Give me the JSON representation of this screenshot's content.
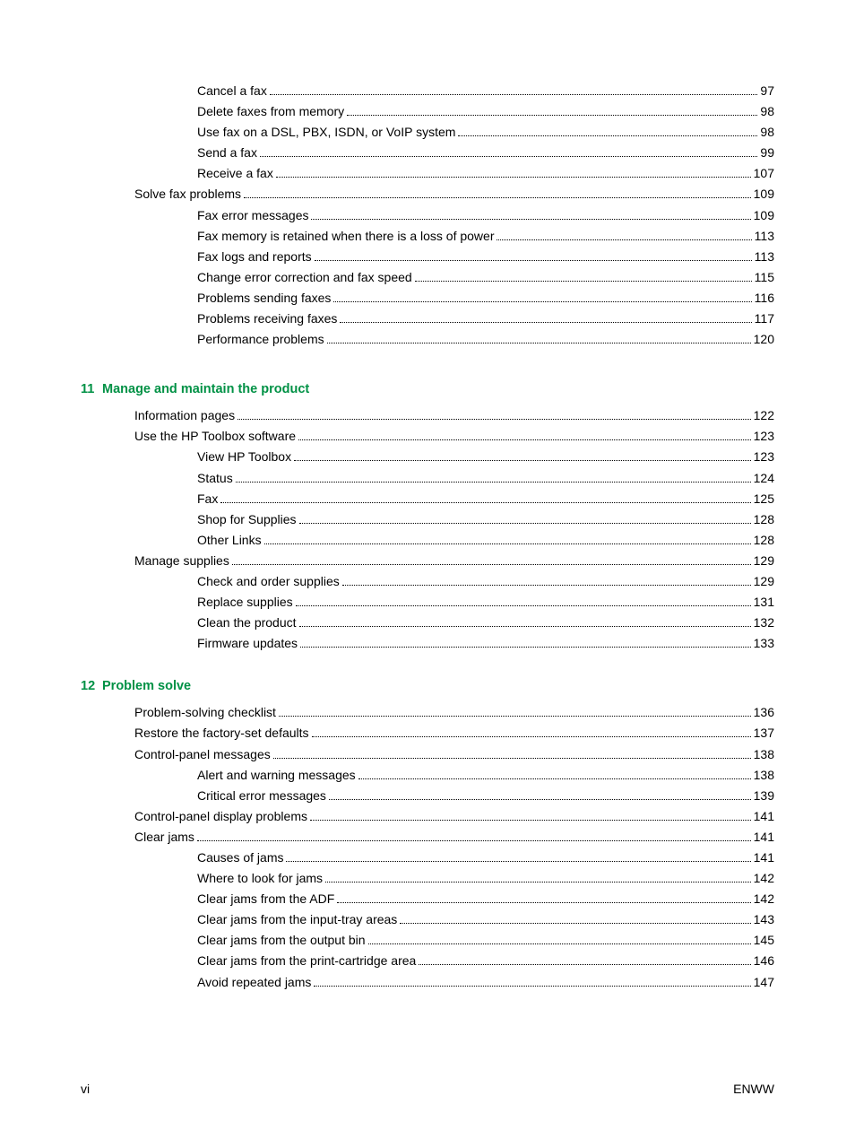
{
  "colors": {
    "heading_color": "#009145",
    "text_color": "#000000",
    "background": "#ffffff"
  },
  "typography": {
    "body_fontsize": 14,
    "heading_fontsize": 14.5,
    "font_family": "Arial"
  },
  "blocks": [
    {
      "type": "entries",
      "entries": [
        {
          "indent": 2,
          "label": "Cancel a fax",
          "page": "97"
        },
        {
          "indent": 2,
          "label": "Delete faxes from memory",
          "page": "98"
        },
        {
          "indent": 2,
          "label": "Use fax on a DSL, PBX, ISDN, or VoIP system",
          "page": "98"
        },
        {
          "indent": 2,
          "label": "Send a fax",
          "page": "99"
        },
        {
          "indent": 2,
          "label": "Receive a fax",
          "page": "107"
        },
        {
          "indent": 1,
          "label": "Solve fax problems",
          "page": "109"
        },
        {
          "indent": 2,
          "label": "Fax error messages ",
          "page": "109"
        },
        {
          "indent": 2,
          "label": "Fax memory is retained when there is a loss of power",
          "page": "113"
        },
        {
          "indent": 2,
          "label": "Fax logs and reports",
          "page": "113"
        },
        {
          "indent": 2,
          "label": "Change error correction and fax speed",
          "page": "115"
        },
        {
          "indent": 2,
          "label": "Problems sending faxes",
          "page": "116"
        },
        {
          "indent": 2,
          "label": "Problems receiving faxes",
          "page": "117"
        },
        {
          "indent": 2,
          "label": "Performance problems",
          "page": "120"
        }
      ]
    },
    {
      "type": "heading",
      "num": "11",
      "title": "Manage and maintain the product"
    },
    {
      "type": "entries",
      "entries": [
        {
          "indent": 1,
          "label": "Information pages",
          "page": "122"
        },
        {
          "indent": 1,
          "label": "Use the HP Toolbox software",
          "page": "123"
        },
        {
          "indent": 2,
          "label": "View HP Toolbox",
          "page": "123"
        },
        {
          "indent": 2,
          "label": "Status",
          "page": "124"
        },
        {
          "indent": 2,
          "label": "Fax",
          "page": "125"
        },
        {
          "indent": 2,
          "label": "Shop for Supplies",
          "page": "128"
        },
        {
          "indent": 2,
          "label": "Other Links",
          "page": "128"
        },
        {
          "indent": 1,
          "label": "Manage supplies",
          "page": "129"
        },
        {
          "indent": 2,
          "label": "Check and order supplies",
          "page": "129"
        },
        {
          "indent": 2,
          "label": "Replace supplies",
          "page": "131"
        },
        {
          "indent": 2,
          "label": "Clean the product",
          "page": "132"
        },
        {
          "indent": 2,
          "label": "Firmware updates",
          "page": "133"
        }
      ]
    },
    {
      "type": "heading",
      "num": "12",
      "title": "Problem solve"
    },
    {
      "type": "entries",
      "entries": [
        {
          "indent": 1,
          "label": "Problem-solving checklist",
          "page": "136"
        },
        {
          "indent": 1,
          "label": "Restore the factory-set defaults",
          "page": "137"
        },
        {
          "indent": 1,
          "label": "Control-panel messages",
          "page": "138"
        },
        {
          "indent": 2,
          "label": "Alert and warning messages ",
          "page": "138"
        },
        {
          "indent": 2,
          "label": "Critical error messages",
          "page": "139"
        },
        {
          "indent": 1,
          "label": "Control-panel display problems",
          "page": "141"
        },
        {
          "indent": 1,
          "label": "Clear jams",
          "page": "141"
        },
        {
          "indent": 2,
          "label": "Causes of jams",
          "page": "141"
        },
        {
          "indent": 2,
          "label": "Where to look for jams",
          "page": "142"
        },
        {
          "indent": 2,
          "label": "Clear jams from the ADF",
          "page": "142"
        },
        {
          "indent": 2,
          "label": "Clear jams from the input-tray areas",
          "page": "143"
        },
        {
          "indent": 2,
          "label": "Clear jams from the output bin",
          "page": "145"
        },
        {
          "indent": 2,
          "label": "Clear jams from the print-cartridge area",
          "page": "146"
        },
        {
          "indent": 2,
          "label": "Avoid repeated jams ",
          "page": "147"
        }
      ]
    }
  ],
  "footer": {
    "left": "vi",
    "right": "ENWW"
  }
}
